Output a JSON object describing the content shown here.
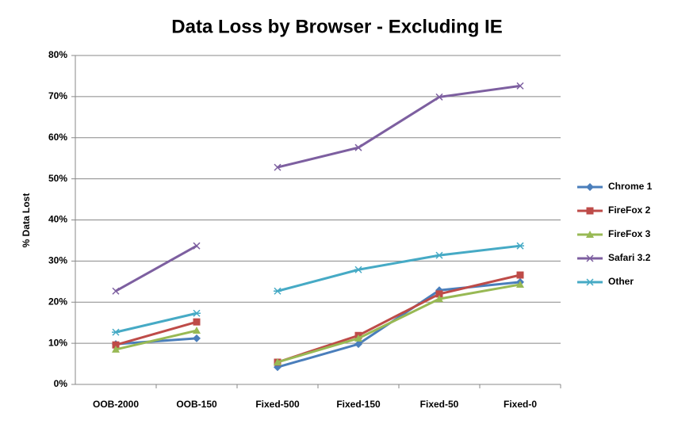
{
  "chart_data": {
    "type": "line",
    "title": "Data Loss by Browser - Excluding IE",
    "y_label": "% Data Lost",
    "categories": [
      "OOB-2000",
      "OOB-150",
      "Fixed-500",
      "Fixed-150",
      "Fixed-50",
      "Fixed-0"
    ],
    "gap_after": [
      1
    ],
    "series": [
      {
        "name": "Chrome 1",
        "color": "#4a7ebb",
        "marker": "diamond",
        "values": [
          9.8,
          11.2,
          4.2,
          9.8,
          22.9,
          24.9
        ]
      },
      {
        "name": "FireFox 2",
        "color": "#be4b48",
        "marker": "square",
        "values": [
          9.6,
          15.2,
          5.4,
          11.9,
          22.0,
          26.6
        ]
      },
      {
        "name": "FireFox 3",
        "color": "#98b954",
        "marker": "triangle",
        "values": [
          8.5,
          13.1,
          5.4,
          11.2,
          20.8,
          24.3
        ]
      },
      {
        "name": "Safari 3.2",
        "color": "#7d5fa0",
        "marker": "x",
        "values": [
          22.7,
          33.7,
          52.8,
          57.6,
          69.9,
          72.6
        ]
      },
      {
        "name": "Other",
        "color": "#46aac5",
        "marker": "star",
        "values": [
          12.7,
          17.3,
          22.7,
          27.9,
          31.4,
          33.7
        ]
      }
    ],
    "ylim": [
      0,
      80
    ],
    "yticks": [
      {
        "value": 0,
        "label": "0%"
      },
      {
        "value": 10,
        "label": "10%"
      },
      {
        "value": 20,
        "label": "20%"
      },
      {
        "value": 30,
        "label": "30%"
      },
      {
        "value": 40,
        "label": "40%"
      },
      {
        "value": 50,
        "label": "50%"
      },
      {
        "value": 60,
        "label": "60%"
      },
      {
        "value": 70,
        "label": "70%"
      },
      {
        "value": 80,
        "label": "80%"
      }
    ],
    "grid": true,
    "legend": "right"
  }
}
